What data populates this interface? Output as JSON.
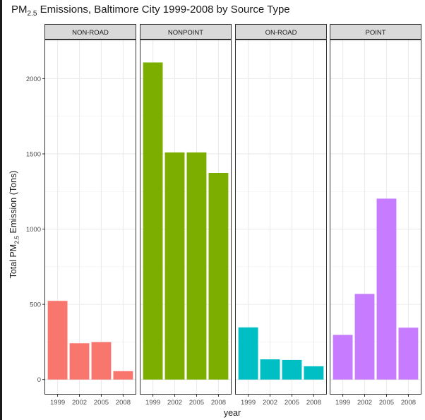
{
  "chart_data": {
    "type": "bar",
    "title": {
      "prefix": "PM",
      "sub": "2.5",
      "suffix": " Emissions, Baltimore City 1999-2008 by Source Type"
    },
    "ylabel": {
      "prefix": "Total PM",
      "sub": "2.5",
      "suffix": " Emission (Tons)"
    },
    "xlabel": "year",
    "categories": [
      "1999",
      "2002",
      "2005",
      "2008"
    ],
    "ylim": [
      -100,
      2260
    ],
    "yticks": [
      "0",
      "500",
      "1000",
      "1500",
      "2000"
    ],
    "grid": true,
    "facets": [
      {
        "name": "NON-ROAD",
        "color": "#F8766D",
        "values": [
          522.9,
          241.3,
          248.9,
          55.8
        ]
      },
      {
        "name": "NONPOINT",
        "color": "#7CAE00",
        "values": [
          2107.6,
          1509.5,
          1509.5,
          1373.2
        ]
      },
      {
        "name": "ON-ROAD",
        "color": "#00BFC4",
        "values": [
          346.8,
          134.3,
          130.4,
          88.3
        ]
      },
      {
        "name": "POINT",
        "color": "#C77CFF",
        "values": [
          296.8,
          569.3,
          1202.5,
          344.98
        ]
      }
    ]
  }
}
